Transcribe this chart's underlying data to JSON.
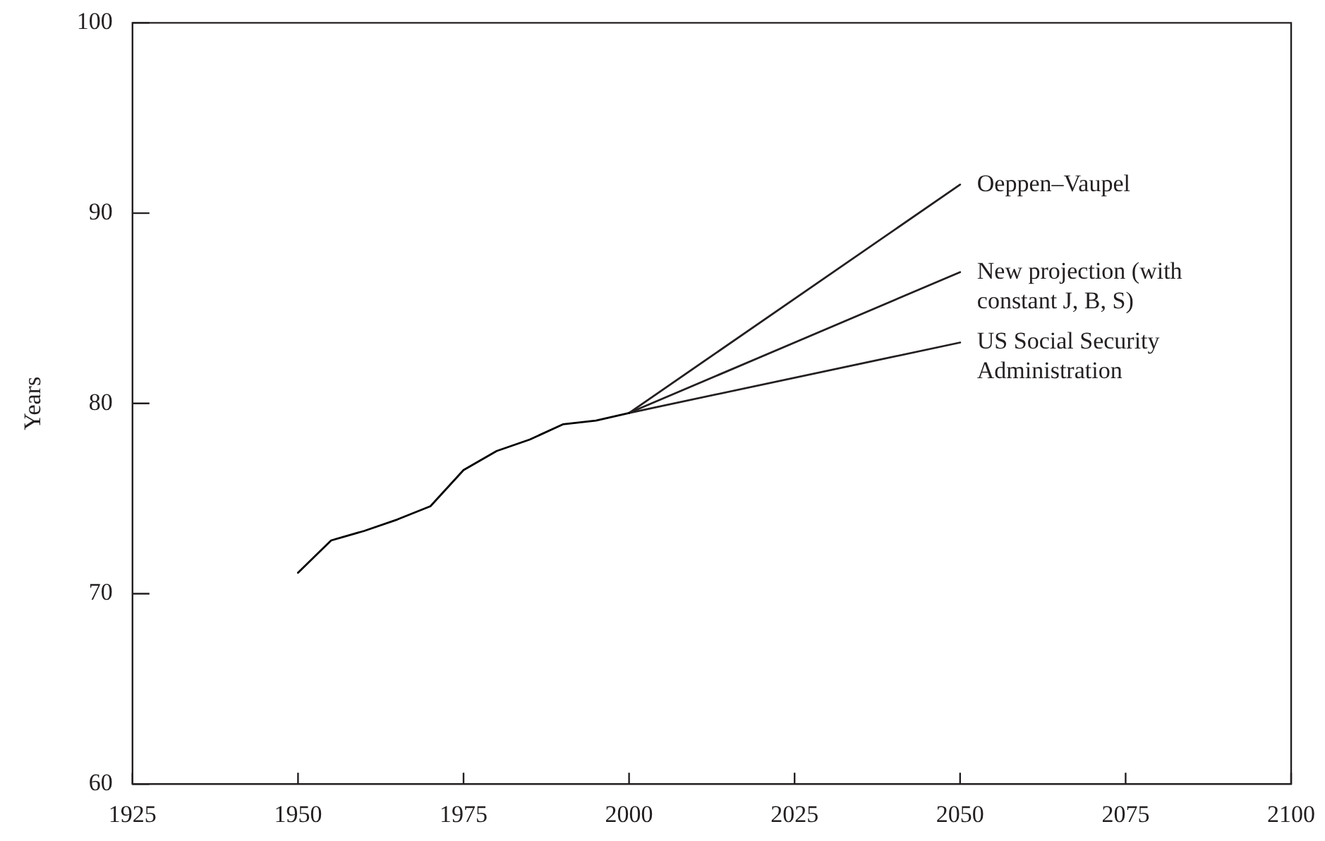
{
  "chart_data": {
    "type": "line",
    "ylabel": "Years",
    "xlim": [
      1925,
      2100
    ],
    "xticks": [
      1925,
      1950,
      1975,
      2000,
      2025,
      2050,
      2075,
      2100
    ],
    "ylim": [
      60,
      100
    ],
    "yticks": [
      60,
      70,
      80,
      90,
      100
    ],
    "grid": false,
    "legend": false,
    "marker": "none",
    "line_style": "solid",
    "series": [
      {
        "color": "#000000",
        "x": [
          1950,
          1955,
          1960,
          1965,
          1970,
          1975,
          1980,
          1985,
          1990,
          1995,
          2000
        ],
        "values": [
          71.1,
          72.8,
          73.3,
          73.9,
          74.6,
          76.5,
          77.5,
          78.1,
          78.9,
          79.1,
          79.5
        ]
      },
      {
        "name": "Oeppen–Vaupel",
        "color": "#231f20",
        "x": [
          2000,
          2050
        ],
        "values": [
          79.5,
          91.5
        ]
      },
      {
        "name": "New projection (with constant J, B, S)",
        "color": "#231f20",
        "x": [
          2000,
          2050
        ],
        "values": [
          79.5,
          86.9
        ]
      },
      {
        "name": "US Social Security Administration",
        "color": "#231f20",
        "x": [
          2000,
          2050
        ],
        "values": [
          79.5,
          83.2
        ]
      }
    ]
  }
}
